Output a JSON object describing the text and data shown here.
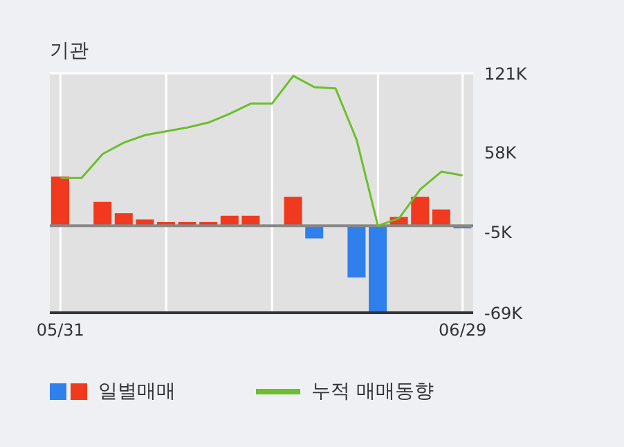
{
  "chart_data": {
    "type": "bar",
    "title": "기관",
    "categories": [
      "05/31",
      null,
      null,
      null,
      null,
      null,
      null,
      null,
      null,
      null,
      null,
      null,
      null,
      null,
      null,
      null,
      null,
      null,
      null,
      "06/29"
    ],
    "series": [
      {
        "name": "일별매매",
        "colors": [
          "#f0391f",
          "#f0391f",
          "#f0391f",
          "#f0391f",
          "#f0391f",
          "#f0391f",
          "#f0391f",
          "#f0391f",
          "#f0391f",
          "#f0391f",
          "#f0391f",
          "#f0391f",
          "#2f7fec",
          "#f0391f",
          "#2f7fec",
          "#2f7fec",
          "#f0391f",
          "#f0391f",
          "#f0391f",
          "#2f7fec"
        ],
        "values": [
          39,
          0,
          19,
          10,
          5,
          3,
          3,
          3,
          8,
          8,
          0,
          23,
          -10,
          0,
          -41,
          -69,
          7,
          23,
          13,
          -2
        ]
      },
      {
        "name": "누적 매매동향",
        "type": "line",
        "color": "#6cbf2a",
        "values": [
          38,
          38,
          57,
          66,
          72,
          75,
          78,
          82,
          89,
          97,
          97,
          119,
          110,
          109,
          68,
          0,
          6,
          29,
          43,
          40
        ]
      }
    ],
    "ylim": [
      -69,
      121
    ],
    "yticks": [
      {
        "value": -69,
        "label": "-69K"
      },
      {
        "value": -5,
        "label": "-5K"
      },
      {
        "value": 58,
        "label": "58K"
      },
      {
        "value": 121,
        "label": "121K"
      }
    ],
    "ref_lines": [
      {
        "axis": "y",
        "value": 0,
        "color": "#888888"
      }
    ],
    "grid": true,
    "legend": "bottom",
    "marker": "none",
    "line_style": "solid"
  }
}
